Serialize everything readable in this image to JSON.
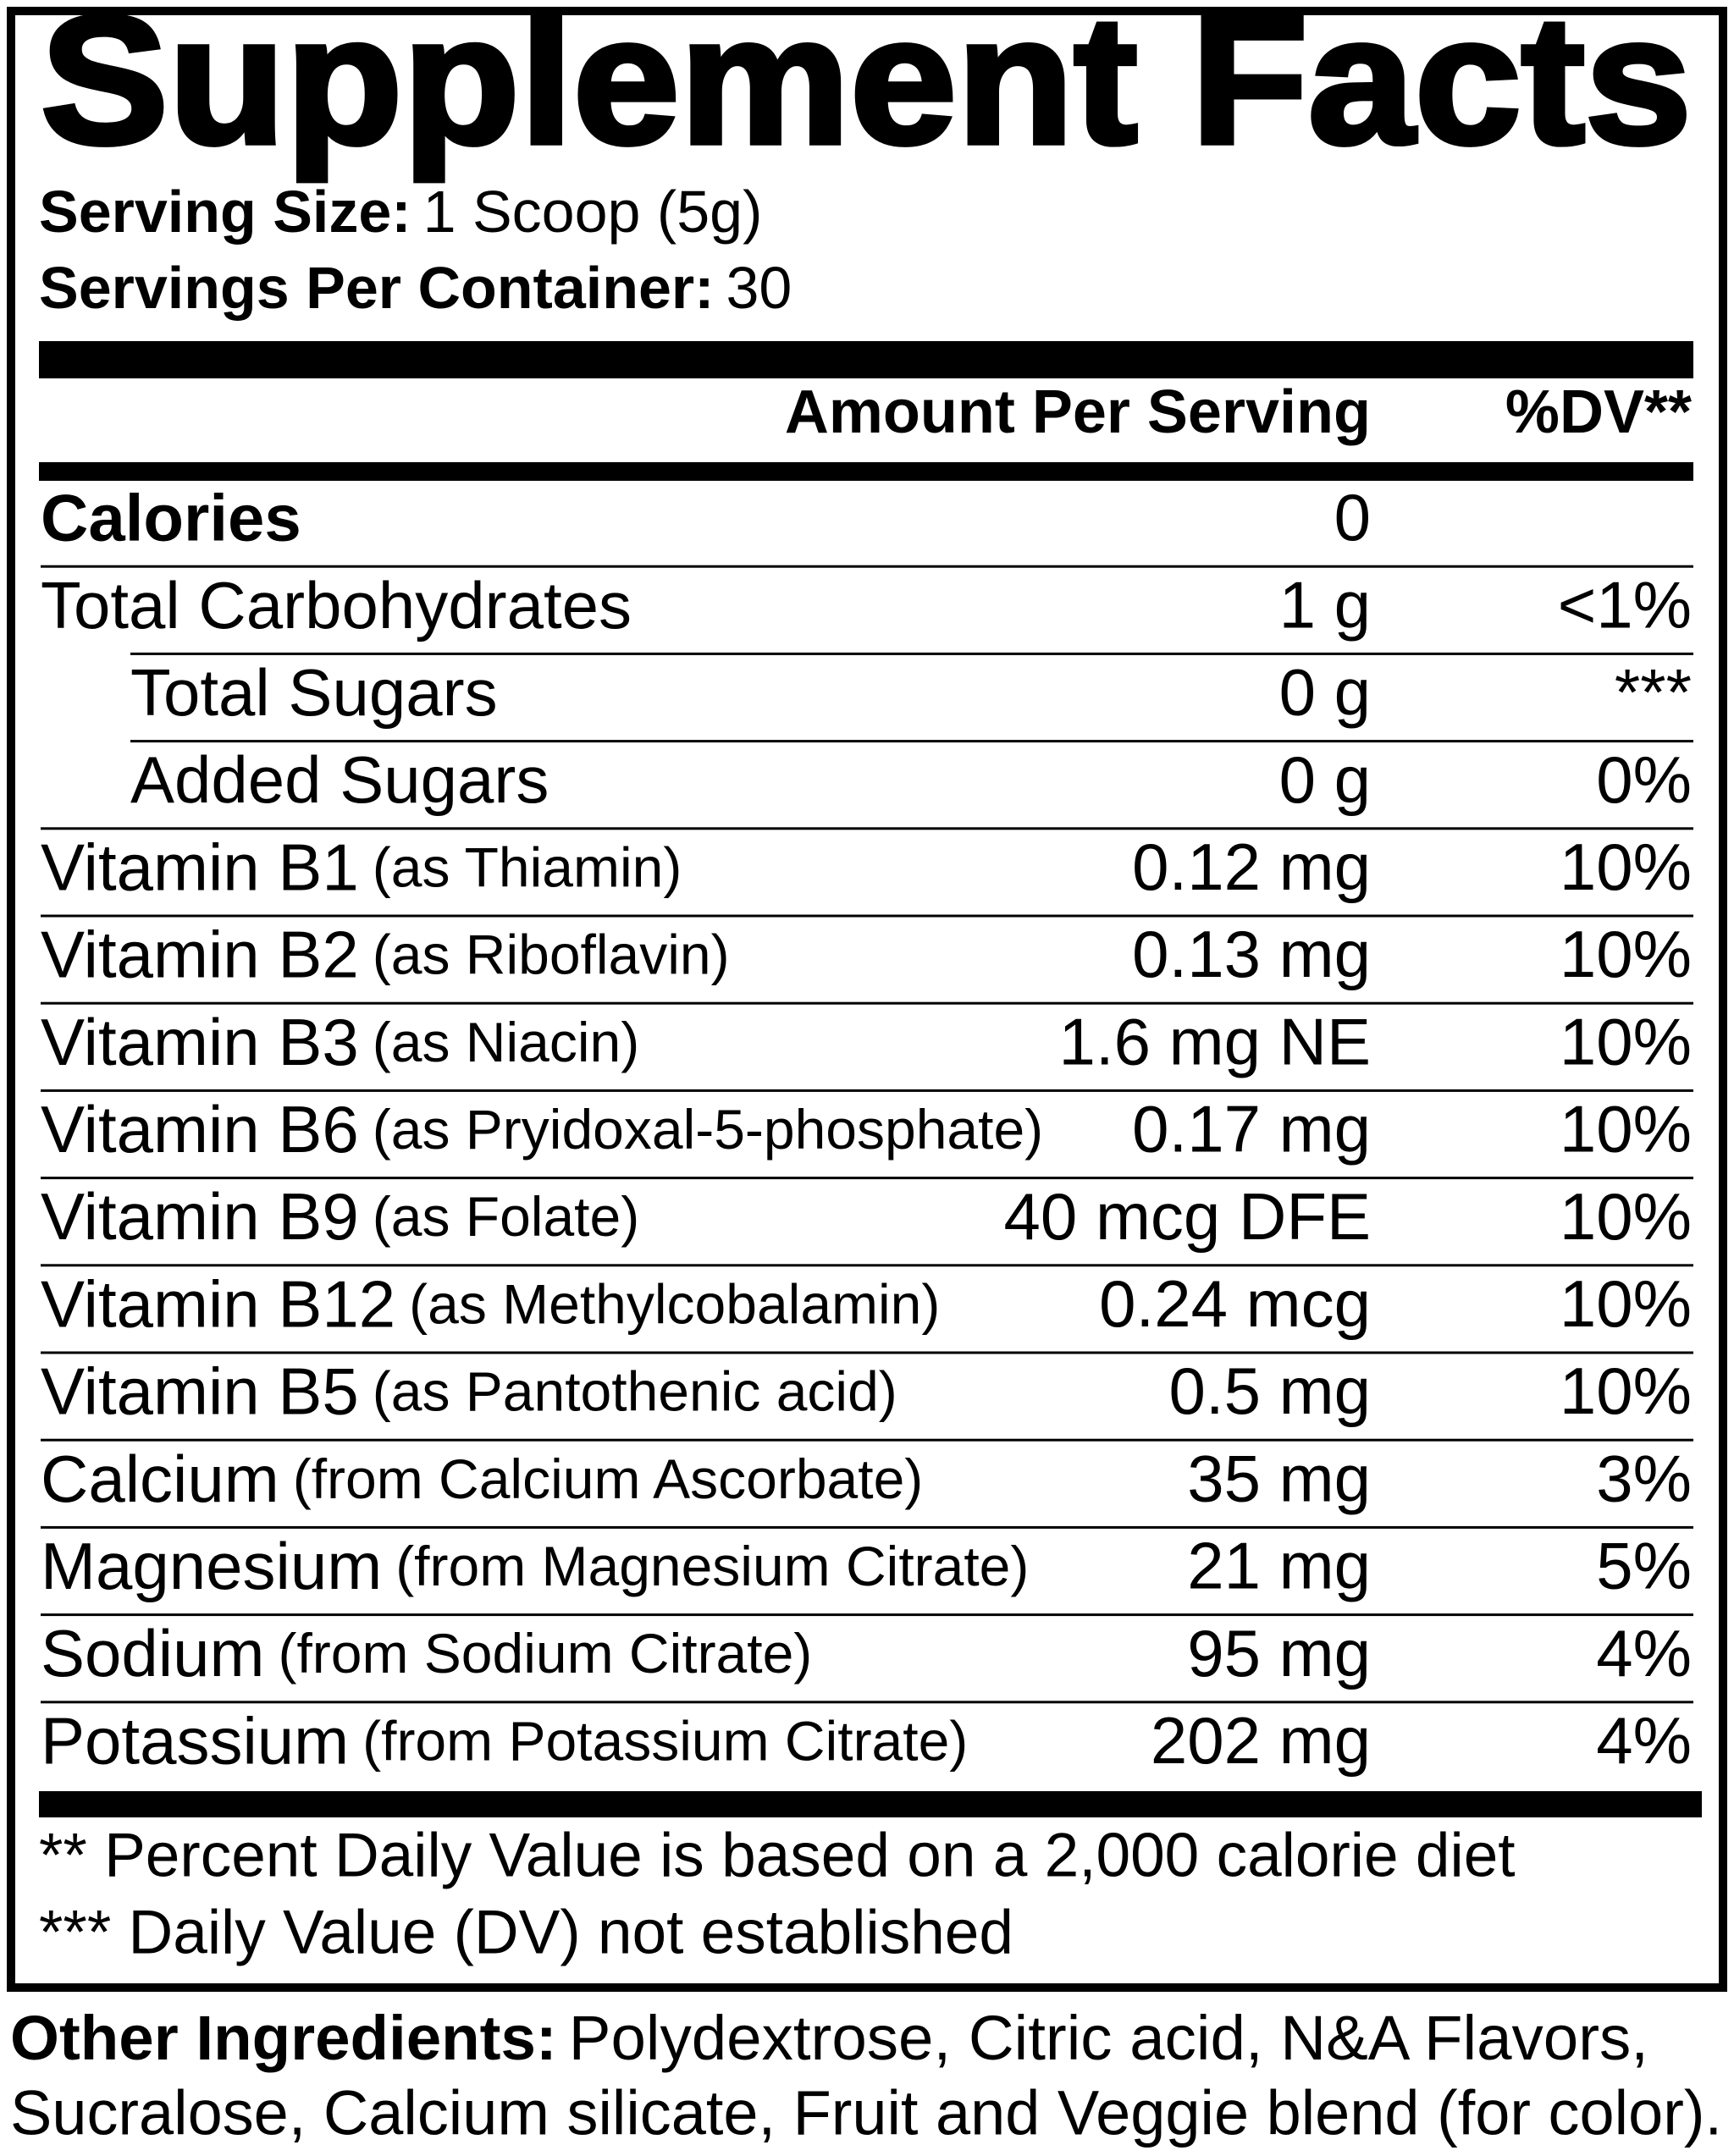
{
  "title": "Supplement Facts",
  "serving": {
    "size_label": "Serving Size:",
    "size": "1 Scoop (5g)",
    "per_container_label": "Servings Per Container:",
    "per_container": "30"
  },
  "header": {
    "amount": "Amount Per Serving",
    "dv": "%DV**"
  },
  "rows": [
    {
      "name": "Calories",
      "amount": "0",
      "bold": true
    },
    {
      "name": "Total Carbohydrates",
      "amount": "1 g",
      "dv": "<1%"
    },
    {
      "name": "Total Sugars",
      "amount": "0 g",
      "dv": "***",
      "indent": true
    },
    {
      "name": "Added Sugars",
      "amount": "0 g",
      "dv": "0%",
      "indent": true
    },
    {
      "name": "Vitamin B1",
      "source": "(as Thiamin)",
      "amount": "0.12 mg",
      "dv": "10%"
    },
    {
      "name": "Vitamin B2",
      "source": "(as Riboflavin)",
      "amount": "0.13 mg",
      "dv": "10%"
    },
    {
      "name": "Vitamin B3",
      "source": "(as Niacin)",
      "amount": "1.6 mg NE",
      "dv": "10%"
    },
    {
      "name": "Vitamin B6",
      "source": "(as Pryidoxal-5-phosphate)",
      "amount": "0.17 mg",
      "dv": "10%"
    },
    {
      "name": "Vitamin B9",
      "source": "(as Folate)",
      "amount": "40 mcg DFE",
      "dv": "10%"
    },
    {
      "name": "Vitamin B12",
      "source": "(as Methylcobalamin)",
      "amount": "0.24 mcg",
      "dv": "10%"
    },
    {
      "name": "Vitamin B5",
      "source": "(as Pantothenic acid)",
      "amount": "0.5 mg",
      "dv": "10%"
    },
    {
      "name": "Calcium",
      "source": "(from Calcium Ascorbate)",
      "amount": "35 mg",
      "dv": "3%"
    },
    {
      "name": "Magnesium",
      "source": "(from Magnesium Citrate)",
      "amount": "21 mg",
      "dv": "5%"
    },
    {
      "name": "Sodium",
      "source": "(from Sodium Citrate)",
      "amount": "95 mg",
      "dv": "4%"
    },
    {
      "name": "Potassium",
      "source": "(from Potassium Citrate)",
      "amount": "202 mg",
      "dv": "4%"
    }
  ],
  "footnotes": [
    "** Percent Daily Value is based on a 2,000 calorie diet",
    "*** Daily Value (DV) not established"
  ],
  "other_ingredients": {
    "label": "Other Ingredients:",
    "lines": [
      "Polydextrose, Citric acid, N&A Flavors,",
      "Sucralose, Calcium silicate, Fruit and Veggie blend (for color)."
    ]
  }
}
